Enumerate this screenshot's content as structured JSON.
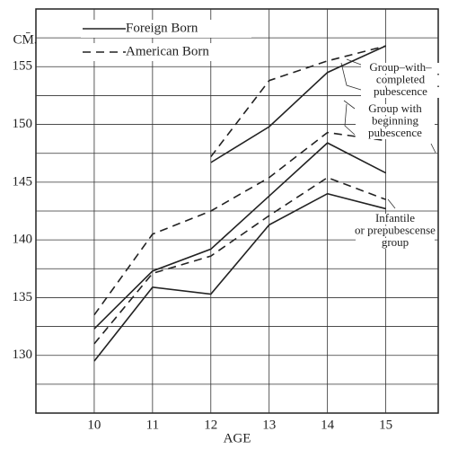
{
  "chart_data": {
    "type": "line",
    "y_label": "CM̄.",
    "x_label": "AGE",
    "x": [
      10,
      11,
      12,
      13,
      14,
      15
    ],
    "xlim": [
      9,
      15.9
    ],
    "xticks": [
      10,
      11,
      12,
      13,
      14,
      15
    ],
    "ylim": [
      125,
      160
    ],
    "yticks": [
      130,
      135,
      140,
      145,
      150,
      155
    ],
    "ygrid": [
      127.5,
      132.5,
      137.5,
      142.5,
      147.5,
      152.5,
      157.5
    ],
    "grid": true,
    "color": "#222222",
    "legend_position": "upper left",
    "legend": [
      {
        "label": "Foreign Born",
        "dashed": false
      },
      {
        "label": "American Born",
        "dashed": true
      }
    ],
    "series": [
      {
        "dashed": false,
        "values": [
          129.5,
          135.9,
          135.3,
          141.3,
          144.0,
          142.7
        ]
      },
      {
        "dashed": true,
        "values": [
          131.0,
          137.1,
          138.6,
          142.1,
          145.4,
          143.5
        ]
      },
      {
        "dashed": false,
        "values": [
          132.3,
          137.3,
          139.2,
          143.8,
          148.4,
          145.8
        ]
      },
      {
        "dashed": true,
        "values": [
          133.5,
          140.5,
          142.5,
          145.4,
          149.3,
          148.6
        ]
      },
      {
        "dashed": false,
        "values": [
          null,
          null,
          146.7,
          149.8,
          154.5,
          156.8
        ]
      },
      {
        "dashed": true,
        "values": [
          null,
          null,
          147.2,
          153.8,
          155.5,
          156.8
        ]
      }
    ],
    "annotations": [
      {
        "lines": [
          "Group–with–",
          "completed",
          "pubescence"
        ]
      },
      {
        "lines": [
          "Group with",
          "beginning",
          "pubescence"
        ]
      },
      {
        "lines": [
          "Infantile",
          "or prepubescense",
          "group"
        ]
      }
    ]
  }
}
